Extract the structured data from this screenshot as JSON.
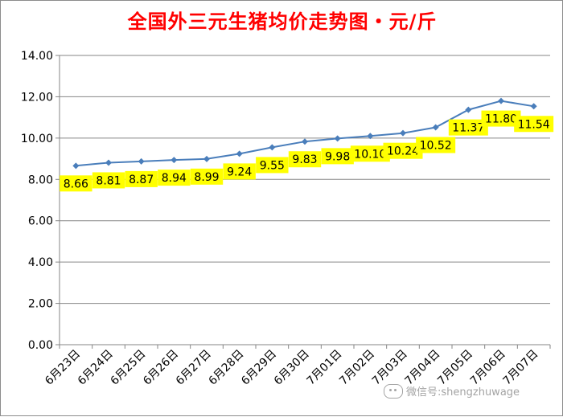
{
  "chart_data": {
    "type": "line",
    "title": "全国外三元生猪均价走势图・元/斤",
    "xlabel": "",
    "ylabel": "",
    "categories": [
      "6月23日",
      "6月24日",
      "6月25日",
      "6月26日",
      "6月27日",
      "6月28日",
      "6月29日",
      "6月30日",
      "7月01日",
      "7月02日",
      "7月03日",
      "7月04日",
      "7月05日",
      "7月06日",
      "7月07日"
    ],
    "series": [
      {
        "values": [
          8.66,
          8.81,
          8.87,
          8.94,
          8.99,
          9.24,
          9.55,
          9.83,
          9.98,
          10.1,
          10.24,
          10.52,
          11.37,
          11.8,
          11.54
        ]
      }
    ],
    "data_labels": [
      "8.66",
      "8.81",
      "8.87",
      "8.94",
      "8.99",
      "9.24",
      "9.55",
      "9.83",
      "9.98",
      "10.10",
      "10.24",
      "10.52",
      "11.37",
      "11.80",
      "11.54"
    ],
    "yticks": [
      "0.00",
      "2.00",
      "4.00",
      "6.00",
      "8.00",
      "10.00",
      "12.00",
      "14.00"
    ],
    "ylim": [
      0,
      14
    ],
    "grid": true,
    "legend": "none",
    "colors": {
      "line": "#4a7ebb",
      "label_bg": "#ffff00",
      "title": "#ff0000",
      "grid": "#868686"
    }
  },
  "watermark": {
    "text": "微信号:shengzhuwage",
    "icon": "wechat-icon"
  }
}
